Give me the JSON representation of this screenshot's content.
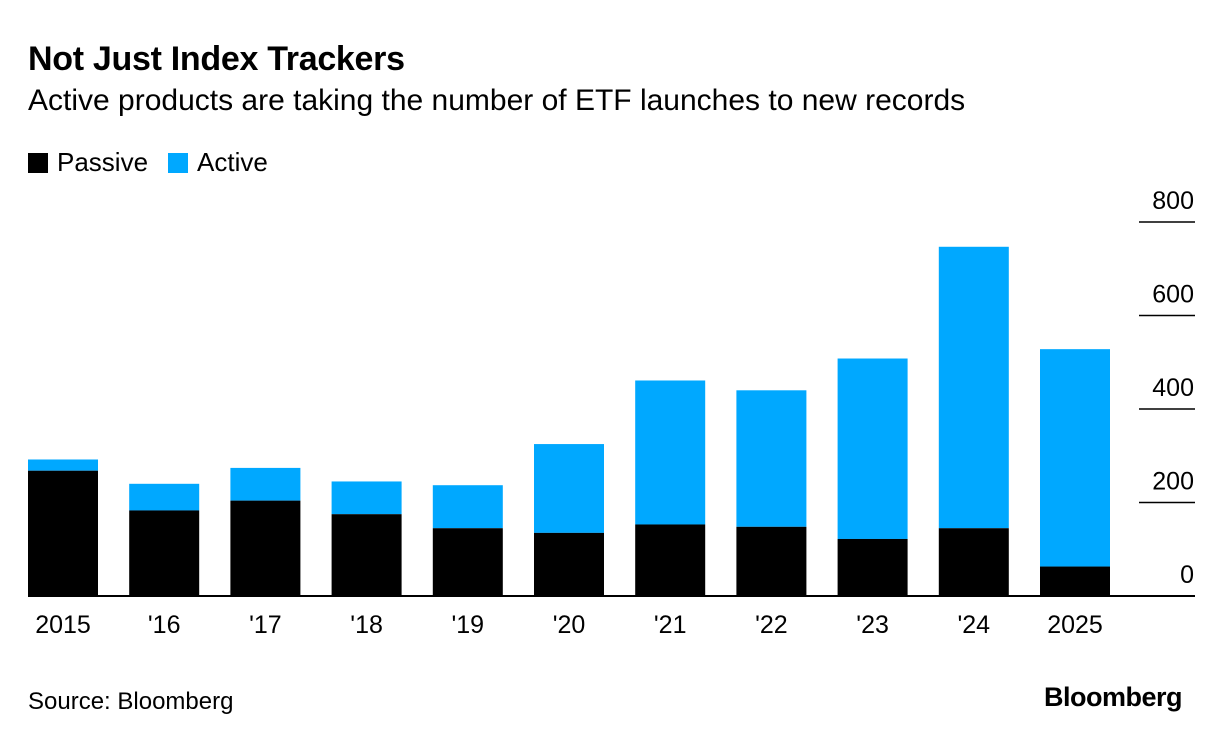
{
  "header": {
    "title": "Not Just Index Trackers",
    "subtitle": "Active products are taking the number of ETF launches to new records"
  },
  "legend": {
    "passive_label": "Passive",
    "active_label": "Active"
  },
  "colors": {
    "passive": "#000000",
    "active": "#00a8ff",
    "grid": "#000000"
  },
  "footer": {
    "source": "Source: Bloomberg",
    "brand": "Bloomberg"
  },
  "chart_data": {
    "type": "bar",
    "stacked": true,
    "title": "Not Just Index Trackers",
    "subtitle": "Active products are taking the number of ETF launches to new records",
    "categories": [
      "2015",
      "'16",
      "'17",
      "'18",
      "'19",
      "'20",
      "'21",
      "'22",
      "'23",
      "'24",
      "2025"
    ],
    "series": [
      {
        "name": "Passive",
        "values": [
          268,
          183,
          204,
          175,
          145,
          135,
          153,
          148,
          122,
          145,
          63
        ]
      },
      {
        "name": "Active",
        "values": [
          24,
          57,
          70,
          70,
          92,
          190,
          308,
          292,
          386,
          602,
          465
        ]
      }
    ],
    "ylim": [
      0,
      800
    ],
    "yticks": [
      0,
      200,
      400,
      600,
      800
    ],
    "y_axis_position": "right",
    "grid": true,
    "legend_position": "top-left",
    "xlabel": "",
    "ylabel": ""
  }
}
